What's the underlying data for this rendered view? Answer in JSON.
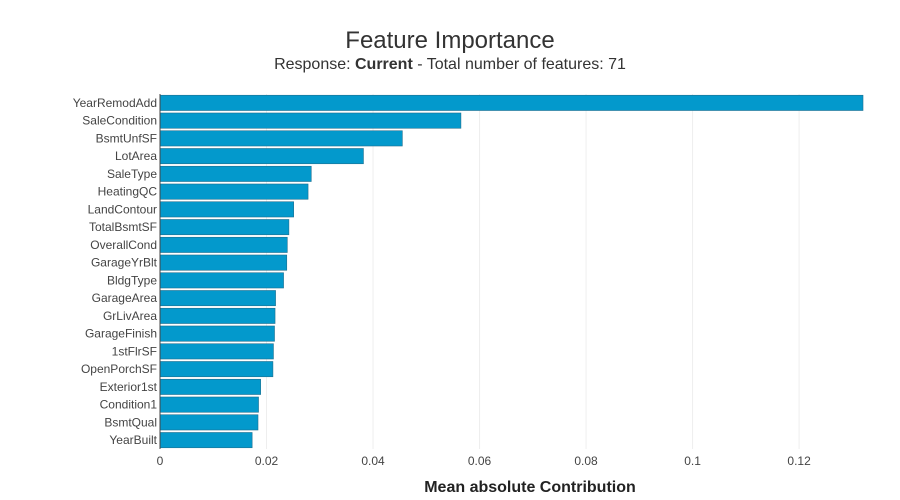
{
  "chart_data": {
    "type": "bar",
    "orientation": "horizontal",
    "title": "Feature Importance",
    "subtitle": {
      "prefix": "Response: ",
      "response": "Current",
      "suffix": " - Total number of features: 71"
    },
    "xlabel": "Mean absolute Contribution",
    "ylabel": "",
    "xlim": [
      0,
      0.132
    ],
    "xticks": [
      0,
      0.02,
      0.04,
      0.06,
      0.08,
      0.1,
      0.12
    ],
    "xtick_labels": [
      "0",
      "0.02",
      "0.04",
      "0.06",
      "0.08",
      "0.1",
      "0.12"
    ],
    "grid": true,
    "bar_color": "#0399cc",
    "categories": [
      "YearRemodAdd",
      "SaleCondition",
      "BsmtUnfSF",
      "LotArea",
      "SaleType",
      "HeatingQC",
      "LandContour",
      "TotalBsmtSF",
      "OverallCond",
      "GarageYrBlt",
      "BldgType",
      "GarageArea",
      "GrLivArea",
      "GarageFinish",
      "1stFlrSF",
      "OpenPorchSF",
      "Exterior1st",
      "Condition1",
      "BsmtQual",
      "YearBuilt"
    ],
    "values": [
      0.132,
      0.0565,
      0.0455,
      0.0382,
      0.0284,
      0.0278,
      0.0251,
      0.0242,
      0.0239,
      0.0238,
      0.0232,
      0.0217,
      0.0216,
      0.0215,
      0.0213,
      0.0212,
      0.0189,
      0.0185,
      0.0184,
      0.0173
    ]
  }
}
